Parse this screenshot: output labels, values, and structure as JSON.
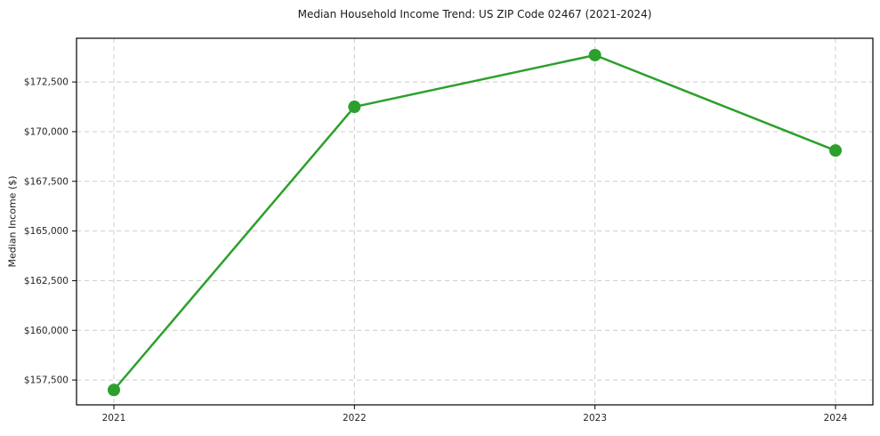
{
  "chart_data": {
    "type": "line",
    "title": "Median Household Income Trend: US ZIP Code 02467 (2021-2024)",
    "xlabel": "",
    "ylabel": "Median Income ($)",
    "categories": [
      "2021",
      "2022",
      "2023",
      "2024"
    ],
    "series": [
      {
        "name": "Median Household Income",
        "values": [
          157000,
          171250,
          173850,
          169050
        ]
      }
    ],
    "y_ticks": [
      157500,
      160000,
      162500,
      165000,
      167500,
      170000,
      172500
    ],
    "y_tick_labels": [
      "$157,500",
      "$160,000",
      "$162,500",
      "$165,000",
      "$167,500",
      "$170,000",
      "$172,500"
    ],
    "ylim": [
      156250,
      174700
    ],
    "grid": "dashed both axes",
    "legend_position": "none",
    "colors": {
      "line": "#2ca02c",
      "marker": "#2ca02c",
      "grid": "#cccccc",
      "axis_border": "#000000",
      "tick_text": "#262626",
      "background": "#ffffff"
    },
    "marker_style": "circle",
    "marker_radius": 7,
    "line_width": 2.5
  }
}
